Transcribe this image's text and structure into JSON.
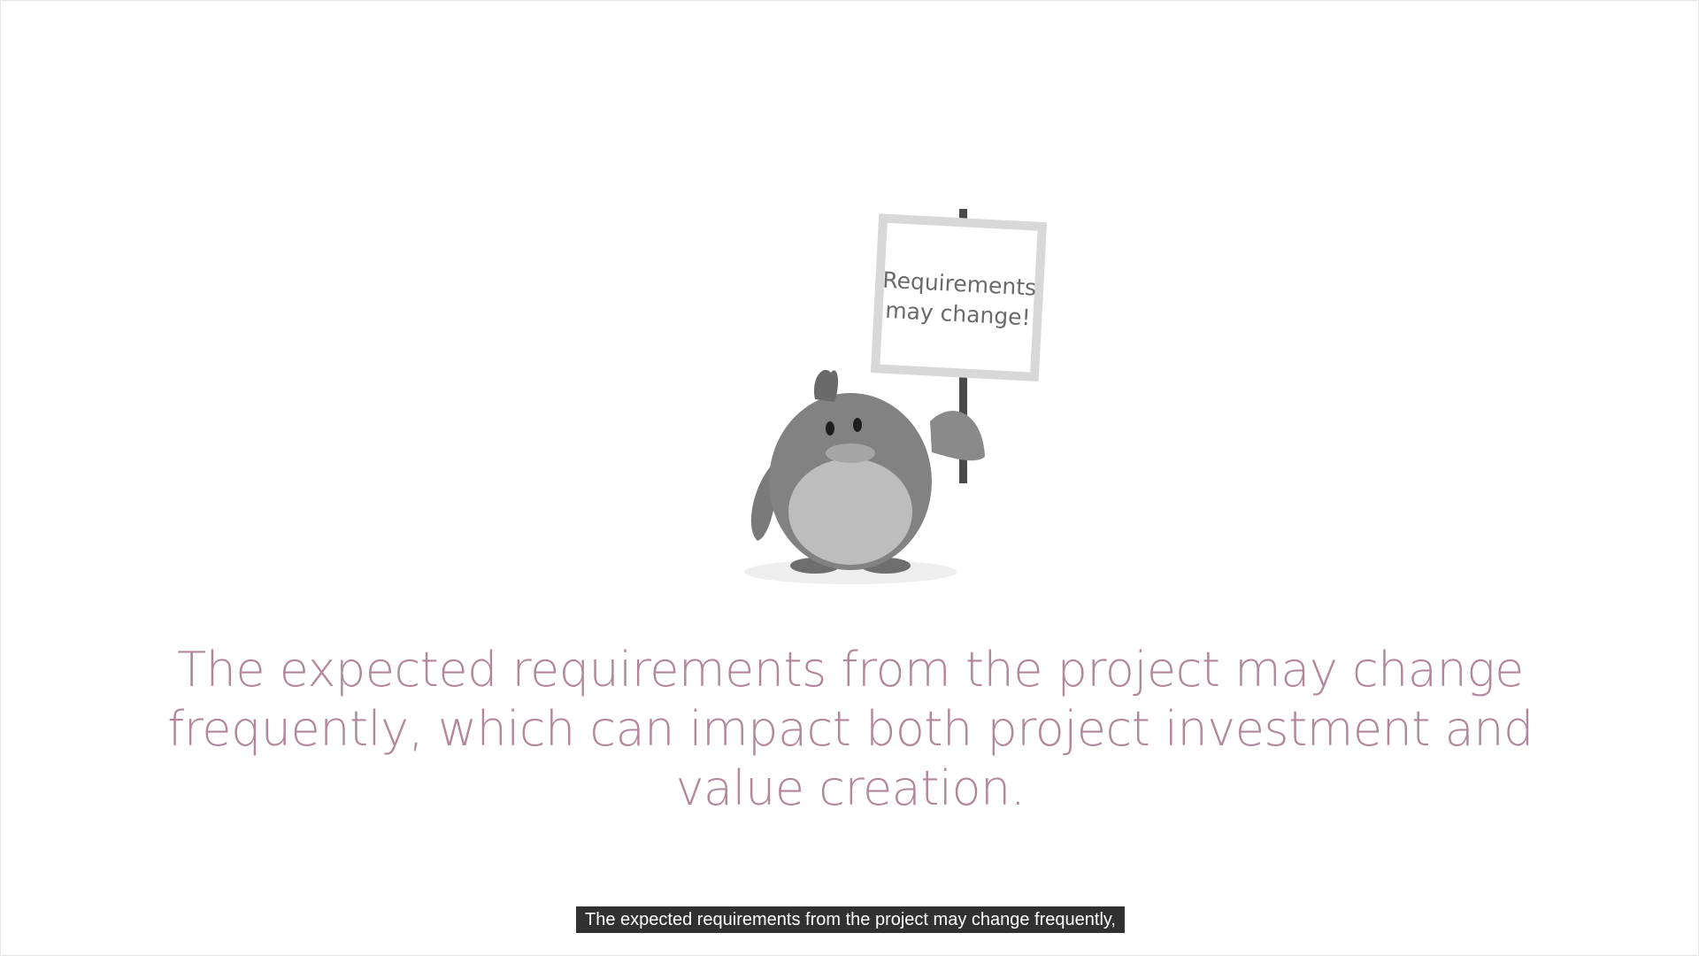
{
  "illustration": {
    "icon": "penguin-holding-sign-icon",
    "sign_line1": "Requirements",
    "sign_line2": "may change!"
  },
  "slide": {
    "line1": "The expected requirements from the project may change",
    "line2": "frequently, which can impact both project investment and",
    "line3": "value creation."
  },
  "caption": {
    "text": "The expected requirements from the project may change frequently,"
  },
  "colors": {
    "slide_text": "#b3869b",
    "caption_bg": "#141414",
    "caption_text": "#ffffff"
  }
}
